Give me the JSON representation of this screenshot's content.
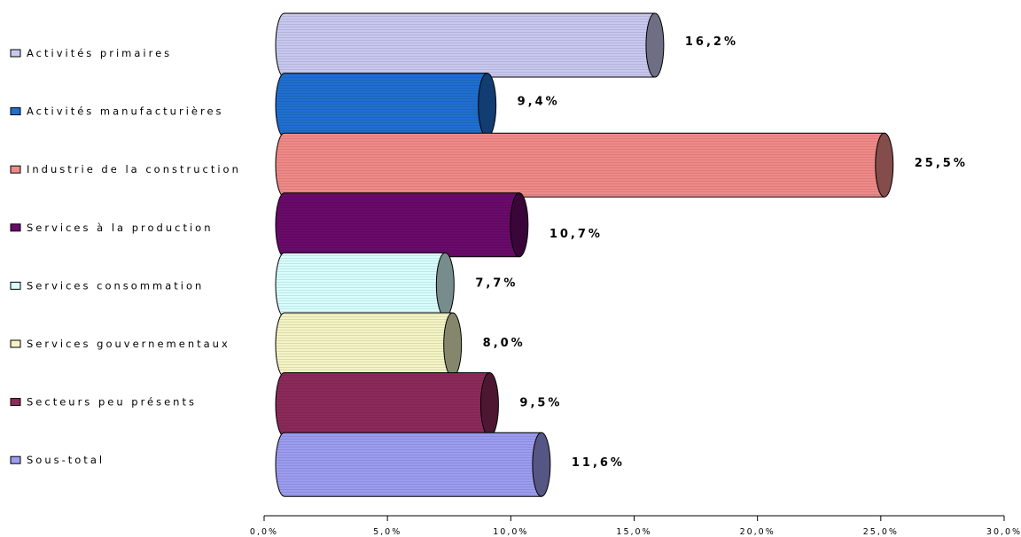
{
  "chart_data": {
    "type": "bar",
    "orientation": "horizontal",
    "categories": [
      "Activités primaires",
      "Activités manufacturières",
      "Industrie de la construction",
      "Services à la production",
      "Services consommation",
      "Services gouvernementaux",
      "Secteurs peu présents",
      "Sous-total"
    ],
    "values": [
      16.2,
      9.4,
      25.5,
      10.7,
      7.7,
      8.0,
      9.5,
      11.6
    ],
    "value_labels": [
      "16,2%",
      "9,4%",
      "25,5%",
      "10,7%",
      "7,7%",
      "8,0%",
      "9,5%",
      "11,6%"
    ],
    "colors": [
      "#c8c8f0",
      "#1f6fd0",
      "#f08a88",
      "#6a0a6a",
      "#d8ffff",
      "#f4f4c4",
      "#8c2a5a",
      "#9c9cf0"
    ],
    "x_ticks": [
      0,
      5,
      10,
      15,
      20,
      25,
      30
    ],
    "x_tick_labels": [
      "0,0%",
      "5,0%",
      "10,0%",
      "15,0%",
      "20,0%",
      "25,0%",
      "30,0%"
    ],
    "xlim": [
      0,
      30
    ],
    "legend_position": "left",
    "grid": false,
    "title": "",
    "xlabel": "",
    "ylabel": ""
  }
}
